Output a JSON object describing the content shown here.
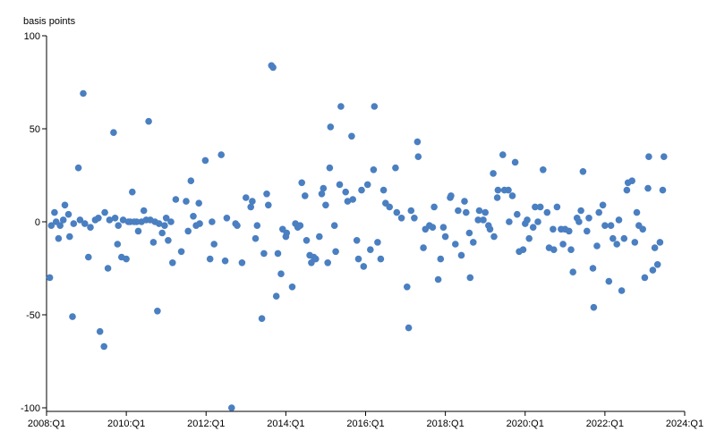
{
  "chart_data": {
    "type": "scatter",
    "ylabel": "basis points",
    "xlabel": "",
    "xlim": [
      2008.0,
      2024.0
    ],
    "ylim": [
      -100,
      100
    ],
    "yticks": [
      100,
      50,
      0,
      -50,
      -100
    ],
    "xticks": [
      {
        "value": 2008,
        "label": "2008:Q1"
      },
      {
        "value": 2010,
        "label": "2010:Q1"
      },
      {
        "value": 2012,
        "label": "2012:Q1"
      },
      {
        "value": 2014,
        "label": "2014:Q1"
      },
      {
        "value": 2016,
        "label": "2016:Q1"
      },
      {
        "value": 2018,
        "label": "2018:Q1"
      },
      {
        "value": 2020,
        "label": "2020:Q1"
      },
      {
        "value": 2022,
        "label": "2022:Q1"
      },
      {
        "value": 2024,
        "label": "2024:Q1"
      }
    ],
    "grid": false,
    "legend": "none",
    "marker_color": "#4a7fc1",
    "points": [
      [
        2008.08,
        -30
      ],
      [
        2008.12,
        -2
      ],
      [
        2008.2,
        5
      ],
      [
        2008.24,
        0
      ],
      [
        2008.3,
        -9
      ],
      [
        2008.34,
        -2
      ],
      [
        2008.42,
        1
      ],
      [
        2008.46,
        9
      ],
      [
        2008.55,
        4
      ],
      [
        2008.58,
        -8
      ],
      [
        2008.65,
        -51
      ],
      [
        2008.68,
        -1
      ],
      [
        2008.8,
        29
      ],
      [
        2008.84,
        1
      ],
      [
        2008.92,
        69
      ],
      [
        2008.96,
        -1
      ],
      [
        2009.05,
        -19
      ],
      [
        2009.1,
        -3
      ],
      [
        2009.22,
        1
      ],
      [
        2009.3,
        2
      ],
      [
        2009.34,
        -59
      ],
      [
        2009.44,
        -67
      ],
      [
        2009.46,
        5
      ],
      [
        2009.54,
        -25
      ],
      [
        2009.58,
        1
      ],
      [
        2009.68,
        48
      ],
      [
        2009.72,
        2
      ],
      [
        2009.78,
        -12
      ],
      [
        2009.8,
        -2
      ],
      [
        2009.88,
        -19
      ],
      [
        2009.92,
        1
      ],
      [
        2010.0,
        -20
      ],
      [
        2010.05,
        0
      ],
      [
        2010.1,
        0
      ],
      [
        2010.15,
        16
      ],
      [
        2010.2,
        0
      ],
      [
        2010.26,
        0
      ],
      [
        2010.3,
        -5
      ],
      [
        2010.38,
        0
      ],
      [
        2010.44,
        6
      ],
      [
        2010.5,
        1
      ],
      [
        2010.56,
        54
      ],
      [
        2010.6,
        1
      ],
      [
        2010.68,
        -11
      ],
      [
        2010.72,
        0
      ],
      [
        2010.78,
        -48
      ],
      [
        2010.82,
        -1
      ],
      [
        2010.9,
        -6
      ],
      [
        2010.96,
        -2
      ],
      [
        2011.0,
        2
      ],
      [
        2011.05,
        -10
      ],
      [
        2011.12,
        0
      ],
      [
        2011.16,
        -22
      ],
      [
        2011.24,
        12
      ],
      [
        2011.38,
        -16
      ],
      [
        2011.5,
        11
      ],
      [
        2011.55,
        -5
      ],
      [
        2011.62,
        22
      ],
      [
        2011.68,
        3
      ],
      [
        2011.75,
        -2
      ],
      [
        2011.82,
        10
      ],
      [
        2011.84,
        -1
      ],
      [
        2011.98,
        33
      ],
      [
        2012.1,
        -20
      ],
      [
        2012.15,
        0
      ],
      [
        2012.2,
        -12
      ],
      [
        2012.38,
        36
      ],
      [
        2012.48,
        -21
      ],
      [
        2012.52,
        2
      ],
      [
        2012.64,
        -100
      ],
      [
        2012.74,
        -1
      ],
      [
        2012.78,
        -2
      ],
      [
        2012.9,
        -22
      ],
      [
        2013.0,
        13
      ],
      [
        2013.12,
        8
      ],
      [
        2013.16,
        11
      ],
      [
        2013.24,
        -9
      ],
      [
        2013.28,
        -2
      ],
      [
        2013.4,
        -52
      ],
      [
        2013.45,
        -17
      ],
      [
        2013.52,
        15
      ],
      [
        2013.56,
        9
      ],
      [
        2013.64,
        84
      ],
      [
        2013.68,
        83
      ],
      [
        2013.76,
        -40
      ],
      [
        2013.8,
        -17
      ],
      [
        2013.88,
        -28
      ],
      [
        2013.92,
        -4
      ],
      [
        2014.0,
        -8
      ],
      [
        2014.02,
        -6
      ],
      [
        2014.16,
        -35
      ],
      [
        2014.24,
        -1
      ],
      [
        2014.3,
        -3
      ],
      [
        2014.36,
        -2
      ],
      [
        2014.4,
        21
      ],
      [
        2014.48,
        14
      ],
      [
        2014.52,
        -10
      ],
      [
        2014.6,
        -18
      ],
      [
        2014.64,
        -22
      ],
      [
        2014.7,
        -19
      ],
      [
        2014.75,
        -20
      ],
      [
        2014.84,
        -8
      ],
      [
        2014.9,
        15
      ],
      [
        2014.94,
        18
      ],
      [
        2015.0,
        9
      ],
      [
        2015.05,
        -22
      ],
      [
        2015.1,
        29
      ],
      [
        2015.12,
        51
      ],
      [
        2015.22,
        -2
      ],
      [
        2015.25,
        -16
      ],
      [
        2015.35,
        20
      ],
      [
        2015.38,
        62
      ],
      [
        2015.5,
        16
      ],
      [
        2015.55,
        11
      ],
      [
        2015.65,
        46
      ],
      [
        2015.68,
        12
      ],
      [
        2015.78,
        -10
      ],
      [
        2015.82,
        -20
      ],
      [
        2015.9,
        17
      ],
      [
        2015.95,
        -24
      ],
      [
        2016.05,
        20
      ],
      [
        2016.12,
        -15
      ],
      [
        2016.2,
        28
      ],
      [
        2016.22,
        62
      ],
      [
        2016.3,
        -11
      ],
      [
        2016.38,
        -20
      ],
      [
        2016.45,
        17
      ],
      [
        2016.5,
        10
      ],
      [
        2016.6,
        8
      ],
      [
        2016.75,
        29
      ],
      [
        2016.78,
        5
      ],
      [
        2016.9,
        2
      ],
      [
        2017.04,
        -35
      ],
      [
        2017.08,
        -57
      ],
      [
        2017.14,
        6
      ],
      [
        2017.22,
        2
      ],
      [
        2017.3,
        43
      ],
      [
        2017.32,
        35
      ],
      [
        2017.45,
        -14
      ],
      [
        2017.5,
        -4
      ],
      [
        2017.6,
        -2
      ],
      [
        2017.68,
        -3
      ],
      [
        2017.72,
        8
      ],
      [
        2017.82,
        -31
      ],
      [
        2017.88,
        -20
      ],
      [
        2017.95,
        -3
      ],
      [
        2018.0,
        -8
      ],
      [
        2018.12,
        13
      ],
      [
        2018.14,
        14
      ],
      [
        2018.25,
        -12
      ],
      [
        2018.32,
        6
      ],
      [
        2018.4,
        -18
      ],
      [
        2018.48,
        11
      ],
      [
        2018.52,
        5
      ],
      [
        2018.6,
        -6
      ],
      [
        2018.62,
        -30
      ],
      [
        2018.7,
        -11
      ],
      [
        2018.82,
        1
      ],
      [
        2018.85,
        6
      ],
      [
        2018.95,
        1
      ],
      [
        2019.0,
        5
      ],
      [
        2019.08,
        -2
      ],
      [
        2019.12,
        -4
      ],
      [
        2019.2,
        26
      ],
      [
        2019.22,
        -8
      ],
      [
        2019.3,
        13
      ],
      [
        2019.32,
        17
      ],
      [
        2019.44,
        36
      ],
      [
        2019.48,
        17
      ],
      [
        2019.58,
        17
      ],
      [
        2019.6,
        0
      ],
      [
        2019.68,
        14
      ],
      [
        2019.75,
        32
      ],
      [
        2019.8,
        4
      ],
      [
        2019.85,
        -16
      ],
      [
        2019.95,
        -15
      ],
      [
        2020.0,
        -1
      ],
      [
        2020.05,
        1
      ],
      [
        2020.1,
        -9
      ],
      [
        2020.2,
        -3
      ],
      [
        2020.25,
        8
      ],
      [
        2020.32,
        0
      ],
      [
        2020.38,
        8
      ],
      [
        2020.45,
        28
      ],
      [
        2020.55,
        5
      ],
      [
        2020.6,
        -14
      ],
      [
        2020.7,
        -4
      ],
      [
        2020.72,
        -15
      ],
      [
        2020.8,
        8
      ],
      [
        2020.9,
        -4
      ],
      [
        2020.95,
        -12
      ],
      [
        2021.0,
        -4
      ],
      [
        2021.1,
        -5
      ],
      [
        2021.15,
        -15
      ],
      [
        2021.2,
        -27
      ],
      [
        2021.3,
        2
      ],
      [
        2021.35,
        0
      ],
      [
        2021.4,
        6
      ],
      [
        2021.45,
        27
      ],
      [
        2021.55,
        -5
      ],
      [
        2021.6,
        2
      ],
      [
        2021.7,
        -25
      ],
      [
        2021.72,
        -46
      ],
      [
        2021.8,
        -13
      ],
      [
        2021.85,
        5
      ],
      [
        2021.95,
        9
      ],
      [
        2022.0,
        -2
      ],
      [
        2022.1,
        -32
      ],
      [
        2022.15,
        -2
      ],
      [
        2022.2,
        -9
      ],
      [
        2022.3,
        -12
      ],
      [
        2022.35,
        1
      ],
      [
        2022.42,
        -37
      ],
      [
        2022.48,
        -9
      ],
      [
        2022.55,
        17
      ],
      [
        2022.58,
        21
      ],
      [
        2022.68,
        22
      ],
      [
        2022.75,
        -11
      ],
      [
        2022.8,
        5
      ],
      [
        2022.85,
        -2
      ],
      [
        2022.95,
        -4
      ],
      [
        2023.0,
        -30
      ],
      [
        2023.08,
        18
      ],
      [
        2023.1,
        35
      ],
      [
        2023.2,
        -26
      ],
      [
        2023.25,
        -14
      ],
      [
        2023.32,
        -23
      ],
      [
        2023.38,
        -11
      ],
      [
        2023.45,
        17
      ],
      [
        2023.48,
        35
      ]
    ]
  }
}
